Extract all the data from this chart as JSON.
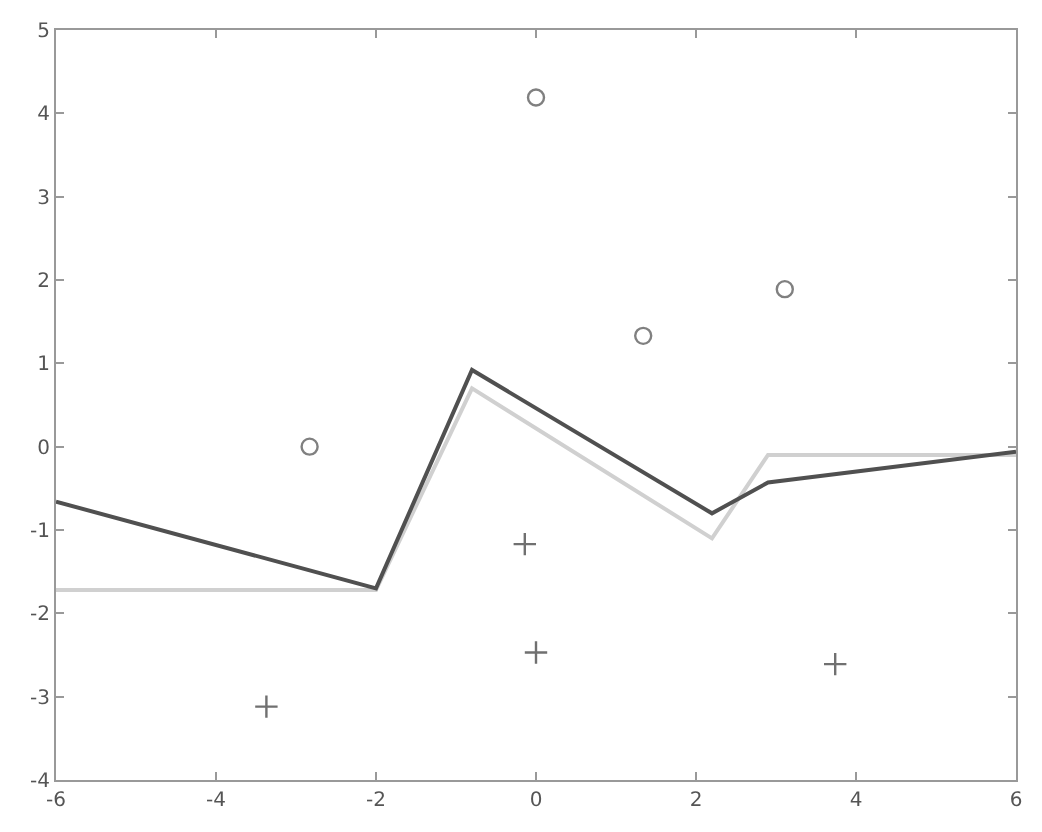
{
  "chart_data": {
    "type": "scatter",
    "xlim": [
      -6,
      6
    ],
    "ylim": [
      -4,
      5
    ],
    "xticks": [
      -6,
      -4,
      -2,
      0,
      2,
      4,
      6
    ],
    "yticks": [
      -4,
      -3,
      -2,
      -1,
      0,
      1,
      2,
      3,
      4,
      5
    ],
    "legend": false,
    "series": [
      {
        "type": "line",
        "color": "#d0d0d0",
        "marker": "none",
        "x": [
          -6,
          -2,
          -0.8,
          2.2,
          2.9,
          6
        ],
        "values": [
          -1.72,
          -1.72,
          0.7,
          -1.1,
          -0.1,
          -0.1
        ]
      },
      {
        "type": "line",
        "color": "#505050",
        "marker": "none",
        "x": [
          -6,
          -2,
          -0.8,
          2.2,
          2.9,
          6
        ],
        "values": [
          -0.66,
          -1.7,
          0.92,
          -0.8,
          -0.43,
          -0.06
        ]
      },
      {
        "color": "#808080",
        "marker": "circle",
        "x": [
          -2.83,
          0,
          1.34,
          3.11
        ],
        "values": [
          0,
          4.19,
          1.33,
          1.89
        ]
      },
      {
        "color": "#707070",
        "marker": "cross",
        "x": [
          -3.37,
          -0.14,
          0,
          3.74
        ],
        "values": [
          -3.12,
          -1.17,
          -2.47,
          -2.61
        ]
      }
    ]
  }
}
